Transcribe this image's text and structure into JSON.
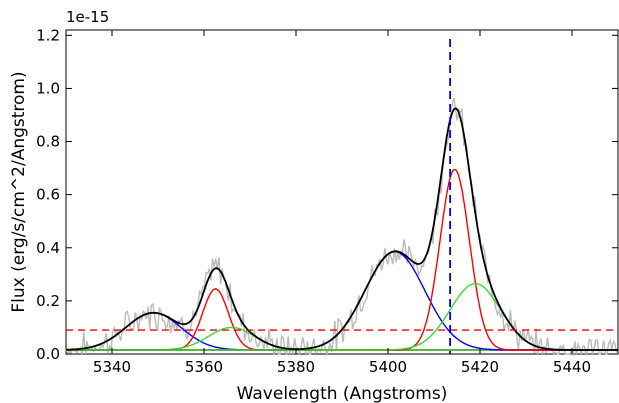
{
  "chart_data": {
    "type": "line",
    "xlabel": "Wavelength (Angstroms)",
    "ylabel": "Flux (erg/s/cm^2/Angstrom)",
    "y_offset_label": "1e-15",
    "xlim": [
      5330,
      5450
    ],
    "ylim": [
      0,
      1.22
    ],
    "x_ticks": [
      5340,
      5360,
      5380,
      5400,
      5420,
      5440
    ],
    "x_tick_labels": [
      "5340",
      "5360",
      "5380",
      "5400",
      "5420",
      "5440"
    ],
    "y_ticks": [
      0.0,
      0.2,
      0.4,
      0.6,
      0.8,
      1.0,
      1.2
    ],
    "y_tick_labels": [
      "0.0",
      "0.2",
      "0.4",
      "0.6",
      "0.8",
      "1.0",
      "1.2"
    ],
    "grid": false,
    "legend": "none",
    "components": [
      {
        "color": "#0000ff",
        "shape": "gaussian",
        "amplitude": 0.14,
        "center": 5349,
        "sigma": 6.0,
        "baseline": 0.015
      },
      {
        "color": "#ff0000",
        "shape": "gaussian",
        "amplitude": 0.23,
        "center": 5362.5,
        "sigma": 2.8,
        "baseline": 0.015
      },
      {
        "color": "#33dd33",
        "shape": "gaussian",
        "amplitude": 0.085,
        "center": 5366,
        "sigma": 5.0,
        "baseline": 0.015
      },
      {
        "color": "#0000ff",
        "shape": "gaussian",
        "amplitude": 0.37,
        "center": 5401.5,
        "sigma": 6.5,
        "baseline": 0.015
      },
      {
        "color": "#ff0000",
        "shape": "gaussian",
        "amplitude": 0.68,
        "center": 5414.5,
        "sigma": 3.2,
        "baseline": 0.015
      },
      {
        "color": "#33dd33",
        "shape": "gaussian",
        "amplitude": 0.25,
        "center": 5419,
        "sigma": 5.5,
        "baseline": 0.015
      }
    ],
    "total_fit": {
      "color": "#000000",
      "note": "sum of components"
    },
    "observed_spectrum": {
      "color": "#bbbbbb"
    },
    "threshold_line": {
      "y": 0.09,
      "color": "#ff0000",
      "style": "dashed"
    },
    "reference_line": {
      "x": 5413.5,
      "color": "#0000ff",
      "style": "dashed"
    }
  }
}
